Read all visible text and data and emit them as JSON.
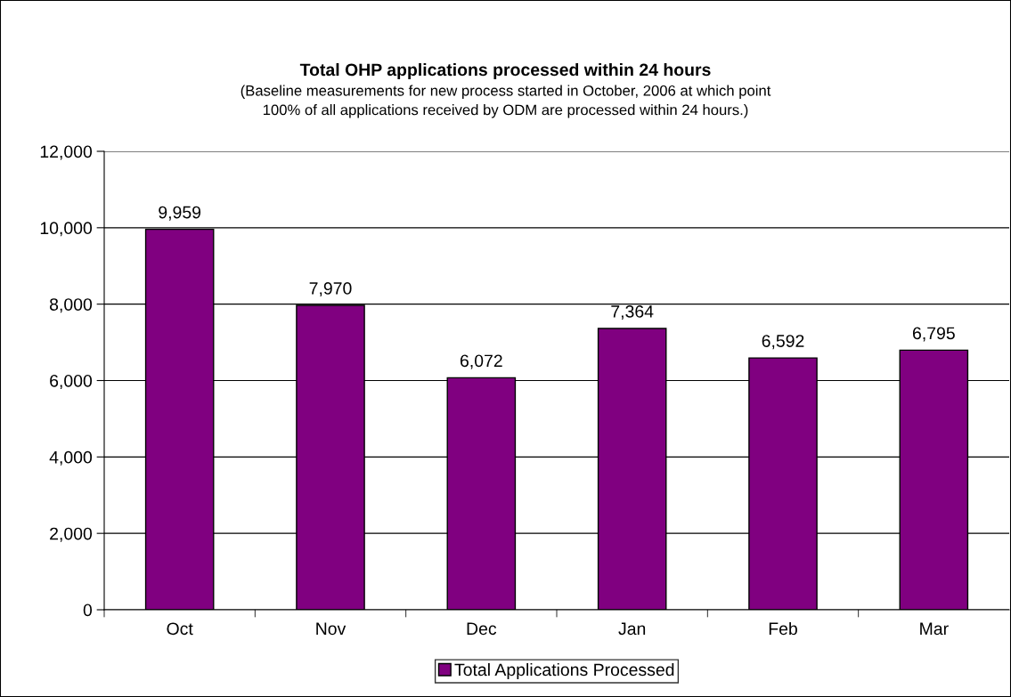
{
  "chart_data": {
    "type": "bar",
    "title": "Total OHP applications processed within 24 hours",
    "subtitle": "(Baseline measurements for new process started in October, 2006 at which point\n100% of all applications received by ODM are processed within 24 hours.)",
    "categories": [
      "Oct",
      "Nov",
      "Dec",
      "Jan",
      "Feb",
      "Mar"
    ],
    "series": [
      {
        "name": "Total Applications Processed",
        "color": "#800080",
        "values": [
          9959,
          7970,
          6072,
          7364,
          6592,
          6795
        ],
        "value_labels": [
          "9,959",
          "7,970",
          "6,072",
          "7,364",
          "6,592",
          "6,795"
        ]
      }
    ],
    "ylim": [
      0,
      12000
    ],
    "yticks": [
      0,
      {
        "value": 2000,
        "label": "2,000"
      },
      {
        "value": 4000,
        "label": "4,000"
      },
      {
        "value": 6000,
        "label": "6,000"
      },
      {
        "value": 8000,
        "label": "8,000"
      },
      {
        "value": 10000,
        "label": "10,000"
      },
      {
        "value": 12000,
        "label": "12,000"
      }
    ],
    "grid": "y",
    "legend": "bottom"
  }
}
